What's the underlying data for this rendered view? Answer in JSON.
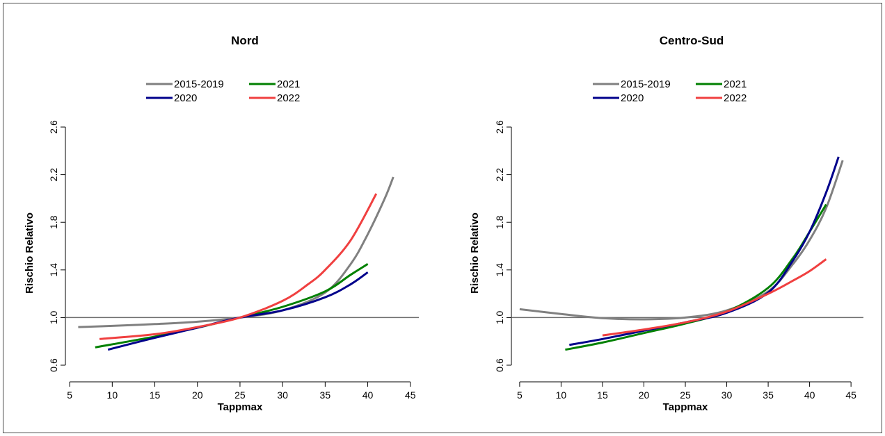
{
  "chart_data": [
    {
      "type": "line",
      "title": "Nord",
      "xlabel": "Tappmax",
      "ylabel": "Rischio Relativo",
      "xlim": [
        4.5,
        46
      ],
      "ylim": [
        0.6,
        2.6
      ],
      "xticks": [
        5,
        10,
        15,
        20,
        25,
        30,
        35,
        40,
        45
      ],
      "yticks": [
        0.6,
        1.0,
        1.4,
        1.8,
        2.2,
        2.6
      ],
      "yticklabels": [
        "0.6",
        "1.0",
        "1.4",
        "1.8",
        "2.2",
        "2.6"
      ],
      "reference_line": 1.0,
      "legend_position": "top",
      "series": [
        {
          "name": "2015-2019",
          "color": "#808080",
          "x": [
            6,
            10,
            15,
            20,
            25,
            30,
            35,
            38,
            40,
            42,
            43
          ],
          "y": [
            0.92,
            0.93,
            0.945,
            0.965,
            1.0,
            1.06,
            1.21,
            1.45,
            1.7,
            2.0,
            2.18
          ]
        },
        {
          "name": "2020",
          "color": "#00008b",
          "x": [
            9.5,
            15,
            20,
            25,
            30,
            35,
            38,
            40
          ],
          "y": [
            0.73,
            0.83,
            0.915,
            1.0,
            1.06,
            1.17,
            1.28,
            1.38
          ]
        },
        {
          "name": "2021",
          "color": "#008000",
          "x": [
            8,
            15,
            20,
            25,
            30,
            35,
            38,
            40
          ],
          "y": [
            0.75,
            0.84,
            0.915,
            1.0,
            1.09,
            1.22,
            1.36,
            1.45
          ]
        },
        {
          "name": "2022",
          "color": "#f04040",
          "x": [
            8.5,
            15,
            20,
            25,
            30,
            33,
            35,
            38,
            41
          ],
          "y": [
            0.82,
            0.86,
            0.92,
            1.0,
            1.14,
            1.28,
            1.4,
            1.65,
            2.04
          ]
        }
      ]
    },
    {
      "type": "line",
      "title": "Centro-Sud",
      "xlabel": "Tappmax",
      "ylabel": "Rischio Relativo",
      "xlim": [
        4,
        46.5
      ],
      "ylim": [
        0.6,
        2.6
      ],
      "xticks": [
        5,
        10,
        15,
        20,
        25,
        30,
        35,
        40,
        45
      ],
      "yticks": [
        0.6,
        1.0,
        1.4,
        1.8,
        2.2,
        2.6
      ],
      "yticklabels": [
        "0.6",
        "1.0",
        "1.4",
        "1.8",
        "2.2",
        "2.6"
      ],
      "reference_line": 1.0,
      "legend_position": "top",
      "series": [
        {
          "name": "2015-2019",
          "color": "#808080",
          "x": [
            5,
            10,
            15,
            20,
            25,
            30,
            35,
            38,
            40,
            42,
            44
          ],
          "y": [
            1.07,
            1.03,
            0.995,
            0.985,
            1.0,
            1.06,
            1.22,
            1.45,
            1.65,
            1.92,
            2.32
          ]
        },
        {
          "name": "2020",
          "color": "#00008b",
          "x": [
            11,
            15,
            20,
            25,
            30,
            35,
            38,
            40,
            42,
            43.5
          ],
          "y": [
            0.77,
            0.82,
            0.89,
            0.96,
            1.04,
            1.21,
            1.48,
            1.72,
            2.05,
            2.35
          ]
        },
        {
          "name": "2021",
          "color": "#008000",
          "x": [
            10.5,
            15,
            20,
            25,
            30,
            35,
            38,
            40,
            42
          ],
          "y": [
            0.73,
            0.79,
            0.87,
            0.95,
            1.05,
            1.25,
            1.5,
            1.72,
            1.95
          ]
        },
        {
          "name": "2022",
          "color": "#f04040",
          "x": [
            15,
            20,
            25,
            30,
            35,
            38,
            40,
            42
          ],
          "y": [
            0.85,
            0.9,
            0.96,
            1.05,
            1.2,
            1.31,
            1.39,
            1.49
          ]
        }
      ]
    }
  ]
}
